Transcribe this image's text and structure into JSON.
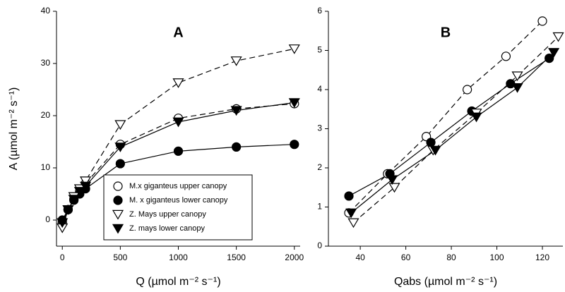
{
  "chart_data": [
    {
      "type": "scatter-line",
      "title": "A",
      "x_label": "Q (µmol m⁻² s⁻¹)",
      "y_label": "A (µmol m⁻² s⁻¹)",
      "xlim": [
        -50,
        2050
      ],
      "ylim": [
        -5,
        40
      ],
      "xticks": [
        0,
        500,
        1000,
        1500,
        2000
      ],
      "yticks": [
        0,
        10,
        20,
        30,
        40
      ],
      "legend": "lower right",
      "series": [
        {
          "name": "M.x giganteus upper canopy",
          "color": "#000",
          "marker": "circle-open",
          "dash": true,
          "x": [
            0,
            50,
            100,
            150,
            200,
            500,
            1000,
            1500,
            2000
          ],
          "values": [
            -0.5,
            2,
            4,
            5.5,
            7,
            14.5,
            19.5,
            21.3,
            22.3
          ]
        },
        {
          "name": "M. x giganteus lower canopy",
          "color": "#000",
          "marker": "circle-filled",
          "dash": false,
          "x": [
            0,
            50,
            100,
            150,
            200,
            500,
            1000,
            1500,
            2000
          ],
          "values": [
            0,
            2,
            3.8,
            5,
            6,
            10.8,
            13.2,
            14,
            14.5
          ]
        },
        {
          "name": "Z. Mays upper canopy",
          "color": "#000",
          "marker": "triangle-open",
          "dash": true,
          "x": [
            0,
            50,
            100,
            150,
            200,
            500,
            1000,
            1500,
            2000
          ],
          "values": [
            -1.5,
            2,
            4.5,
            6,
            7.5,
            18.3,
            26.3,
            30.5,
            32.8
          ]
        },
        {
          "name": "Z. mays lower canopy",
          "color": "#000",
          "marker": "triangle-filled",
          "dash": false,
          "x": [
            0,
            50,
            100,
            150,
            200,
            500,
            1000,
            1500,
            2000
          ],
          "values": [
            -0.5,
            2,
            4,
            5.5,
            6.5,
            14,
            18.8,
            21,
            22.5
          ]
        }
      ]
    },
    {
      "type": "scatter-line",
      "title": "B",
      "x_label": "Qabs (µmol m⁻² s⁻¹)",
      "xlim": [
        26,
        129
      ],
      "ylim": [
        0,
        6
      ],
      "xticks": [
        40,
        60,
        80,
        100,
        120
      ],
      "yticks": [
        0,
        1,
        2,
        3,
        4,
        5,
        6
      ],
      "series": [
        {
          "color": "#000",
          "marker": "circle-open",
          "dash": true,
          "x": [
            35,
            52,
            69,
            87,
            104,
            120
          ],
          "values": [
            0.85,
            1.85,
            2.8,
            4,
            4.85,
            5.75
          ]
        },
        {
          "color": "#000",
          "marker": "circle-filled",
          "dash": false,
          "x": [
            35,
            53,
            71,
            89,
            106,
            123
          ],
          "values": [
            1.28,
            1.85,
            2.65,
            3.45,
            4.15,
            4.8
          ]
        },
        {
          "color": "#000",
          "marker": "triangle-open",
          "dash": true,
          "x": [
            37,
            55,
            72,
            91,
            109,
            127
          ],
          "values": [
            0.6,
            1.5,
            2.45,
            3.4,
            4.35,
            5.35
          ]
        },
        {
          "color": "#000",
          "marker": "triangle-filled",
          "dash": false,
          "x": [
            36,
            54,
            73,
            91,
            109,
            125
          ],
          "values": [
            0.85,
            1.7,
            2.45,
            3.3,
            4.05,
            4.95
          ]
        }
      ]
    }
  ]
}
